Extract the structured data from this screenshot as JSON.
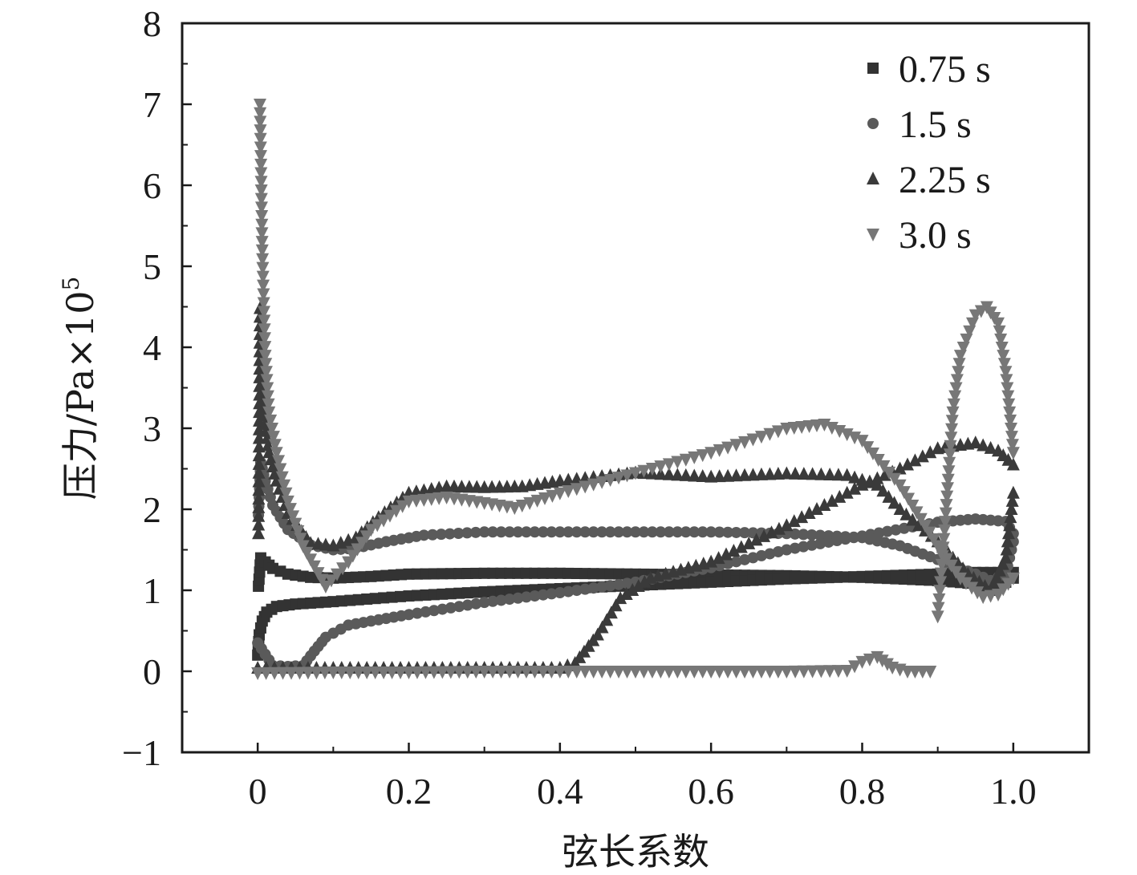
{
  "chart_data": {
    "type": "scatter",
    "title": "",
    "xlabel": "弦长系数",
    "ylabel": "压力/Pa×10",
    "ylabel_sup": "5",
    "xlim": [
      -0.1,
      1.1
    ],
    "ylim": [
      -1,
      8
    ],
    "x_ticks": [
      0,
      0.2,
      0.4,
      0.6,
      0.8,
      1.0
    ],
    "x_tick_labels": [
      "0",
      "0.2",
      "0.4",
      "0.6",
      "0.8",
      "1.0"
    ],
    "y_ticks": [
      -1,
      0,
      1,
      2,
      3,
      4,
      5,
      6,
      7,
      8
    ],
    "y_tick_labels": [
      "−1",
      "0",
      "1",
      "2",
      "3",
      "4",
      "5",
      "6",
      "7",
      "8"
    ],
    "grid": false,
    "legend_position": "top-right",
    "series": [
      {
        "name": "0.75 s",
        "marker": "square",
        "color": "#333333",
        "upper": [
          [
            0.001,
            1.05
          ],
          [
            0.004,
            1.4
          ],
          [
            0.01,
            1.35
          ],
          [
            0.02,
            1.27
          ],
          [
            0.04,
            1.2
          ],
          [
            0.07,
            1.16
          ],
          [
            0.1,
            1.15
          ],
          [
            0.15,
            1.17
          ],
          [
            0.2,
            1.2
          ],
          [
            0.3,
            1.21
          ],
          [
            0.4,
            1.21
          ],
          [
            0.5,
            1.2
          ],
          [
            0.6,
            1.19
          ],
          [
            0.7,
            1.18
          ],
          [
            0.8,
            1.16
          ],
          [
            0.9,
            1.12
          ],
          [
            0.95,
            1.08
          ],
          [
            0.97,
            1.06
          ],
          [
            0.99,
            1.1
          ],
          [
            1.0,
            1.15
          ]
        ],
        "lower": [
          [
            0.0,
            0.2
          ],
          [
            0.002,
            0.45
          ],
          [
            0.006,
            0.62
          ],
          [
            0.012,
            0.73
          ],
          [
            0.025,
            0.8
          ],
          [
            0.05,
            0.83
          ],
          [
            0.1,
            0.86
          ],
          [
            0.2,
            0.93
          ],
          [
            0.3,
            0.98
          ],
          [
            0.4,
            1.02
          ],
          [
            0.5,
            1.06
          ],
          [
            0.6,
            1.1
          ],
          [
            0.7,
            1.14
          ],
          [
            0.8,
            1.17
          ],
          [
            0.9,
            1.2
          ],
          [
            0.95,
            1.22
          ],
          [
            1.0,
            1.22
          ]
        ]
      },
      {
        "name": "1.5 s",
        "marker": "circle",
        "color": "#5a5a5a",
        "upper": [
          [
            0.001,
            1.93
          ],
          [
            0.004,
            2.58
          ],
          [
            0.01,
            2.35
          ],
          [
            0.02,
            2.05
          ],
          [
            0.04,
            1.75
          ],
          [
            0.07,
            1.56
          ],
          [
            0.1,
            1.5
          ],
          [
            0.13,
            1.52
          ],
          [
            0.17,
            1.6
          ],
          [
            0.22,
            1.68
          ],
          [
            0.3,
            1.72
          ],
          [
            0.4,
            1.72
          ],
          [
            0.5,
            1.72
          ],
          [
            0.6,
            1.72
          ],
          [
            0.7,
            1.7
          ],
          [
            0.8,
            1.65
          ],
          [
            0.85,
            1.55
          ],
          [
            0.9,
            1.38
          ],
          [
            0.95,
            1.2
          ],
          [
            0.97,
            1.12
          ],
          [
            0.99,
            1.2
          ],
          [
            1.0,
            1.6
          ]
        ],
        "lower": [
          [
            0.0,
            0.35
          ],
          [
            0.02,
            0.07
          ],
          [
            0.04,
            0.06
          ],
          [
            0.06,
            0.07
          ],
          [
            0.075,
            0.25
          ],
          [
            0.09,
            0.42
          ],
          [
            0.12,
            0.57
          ],
          [
            0.15,
            0.62
          ],
          [
            0.2,
            0.7
          ],
          [
            0.3,
            0.85
          ],
          [
            0.4,
            0.97
          ],
          [
            0.5,
            1.1
          ],
          [
            0.6,
            1.28
          ],
          [
            0.7,
            1.5
          ],
          [
            0.8,
            1.67
          ],
          [
            0.9,
            1.84
          ],
          [
            0.95,
            1.88
          ],
          [
            0.99,
            1.85
          ],
          [
            1.0,
            1.7
          ]
        ]
      },
      {
        "name": "2.25 s",
        "marker": "triangle-up",
        "color": "#3a3a3a",
        "upper": [
          [
            0.001,
            1.7
          ],
          [
            0.003,
            4.48
          ],
          [
            0.006,
            4.1
          ],
          [
            0.01,
            3.05
          ],
          [
            0.015,
            2.7
          ],
          [
            0.025,
            2.35
          ],
          [
            0.04,
            1.95
          ],
          [
            0.07,
            1.58
          ],
          [
            0.1,
            1.55
          ],
          [
            0.13,
            1.65
          ],
          [
            0.16,
            1.9
          ],
          [
            0.2,
            2.2
          ],
          [
            0.25,
            2.28
          ],
          [
            0.3,
            2.27
          ],
          [
            0.35,
            2.28
          ],
          [
            0.4,
            2.35
          ],
          [
            0.5,
            2.45
          ],
          [
            0.6,
            2.4
          ],
          [
            0.7,
            2.44
          ],
          [
            0.78,
            2.42
          ],
          [
            0.82,
            2.3
          ],
          [
            0.85,
            2.0
          ],
          [
            0.9,
            1.6
          ],
          [
            0.94,
            1.2
          ],
          [
            0.97,
            1.0
          ],
          [
            0.99,
            1.4
          ],
          [
            1.0,
            2.2
          ]
        ],
        "lower": [
          [
            0.0,
            0.04
          ],
          [
            0.1,
            0.04
          ],
          [
            0.2,
            0.04
          ],
          [
            0.3,
            0.04
          ],
          [
            0.4,
            0.04
          ],
          [
            0.42,
            0.1
          ],
          [
            0.45,
            0.45
          ],
          [
            0.48,
            0.9
          ],
          [
            0.52,
            1.15
          ],
          [
            0.6,
            1.35
          ],
          [
            0.7,
            1.8
          ],
          [
            0.8,
            2.3
          ],
          [
            0.85,
            2.5
          ],
          [
            0.9,
            2.75
          ],
          [
            0.95,
            2.82
          ],
          [
            0.98,
            2.72
          ],
          [
            1.0,
            2.55
          ]
        ]
      },
      {
        "name": "3.0 s",
        "marker": "triangle-down",
        "color": "#777777",
        "upper": [
          [
            0.003,
            7.0
          ],
          [
            0.006,
            5.2
          ],
          [
            0.01,
            3.9
          ],
          [
            0.015,
            3.2
          ],
          [
            0.025,
            2.7
          ],
          [
            0.04,
            2.1
          ],
          [
            0.06,
            1.55
          ],
          [
            0.09,
            1.05
          ],
          [
            0.12,
            1.35
          ],
          [
            0.15,
            1.75
          ],
          [
            0.2,
            2.1
          ],
          [
            0.25,
            2.15
          ],
          [
            0.3,
            2.08
          ],
          [
            0.34,
            2.02
          ],
          [
            0.4,
            2.2
          ],
          [
            0.5,
            2.45
          ],
          [
            0.6,
            2.7
          ],
          [
            0.7,
            3.0
          ],
          [
            0.75,
            3.05
          ],
          [
            0.8,
            2.85
          ],
          [
            0.85,
            2.3
          ],
          [
            0.9,
            1.55
          ],
          [
            0.93,
            1.15
          ],
          [
            0.96,
            0.92
          ],
          [
            0.98,
            0.95
          ],
          [
            1.0,
            1.15
          ]
        ],
        "lower": [
          [
            0.0,
            -0.02
          ],
          [
            0.1,
            -0.01
          ],
          [
            0.2,
            -0.01
          ],
          [
            0.3,
            0.0
          ],
          [
            0.4,
            0.0
          ],
          [
            0.5,
            0.0
          ],
          [
            0.6,
            0.0
          ],
          [
            0.7,
            0.0
          ],
          [
            0.78,
            0.01
          ],
          [
            0.8,
            0.12
          ],
          [
            0.82,
            0.18
          ],
          [
            0.84,
            0.05
          ],
          [
            0.86,
            0.0
          ],
          [
            0.89,
            0.0
          ]
        ],
        "right_peak": [
          [
            0.9,
            0.68
          ],
          [
            0.91,
            1.85
          ],
          [
            0.92,
            3.2
          ],
          [
            0.93,
            3.9
          ],
          [
            0.95,
            4.4
          ],
          [
            0.965,
            4.5
          ],
          [
            0.98,
            4.3
          ],
          [
            0.99,
            3.7
          ],
          [
            1.0,
            2.7
          ]
        ]
      }
    ]
  }
}
